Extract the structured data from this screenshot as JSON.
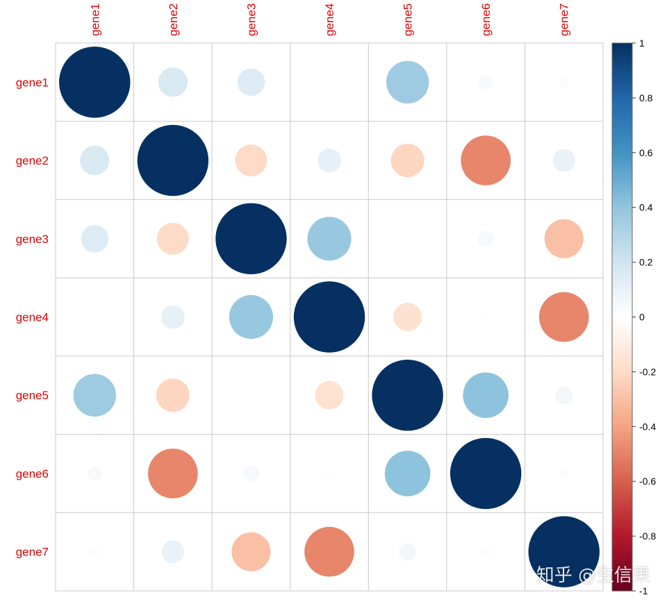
{
  "chart_data": {
    "type": "heatmap",
    "style": "corrplot-circle",
    "variables": [
      "gene1",
      "gene2",
      "gene3",
      "gene4",
      "gene5",
      "gene6",
      "gene7"
    ],
    "matrix": [
      [
        1,
        0.17,
        0.15,
        0.0,
        0.36,
        0.04,
        0.02
      ],
      [
        0.17,
        1,
        -0.2,
        0.11,
        -0.22,
        -0.49,
        0.1
      ],
      [
        0.15,
        -0.2,
        1,
        0.38,
        0.0,
        0.05,
        -0.3
      ],
      [
        0.0,
        0.11,
        0.38,
        1,
        -0.16,
        -0.01,
        -0.49
      ],
      [
        0.36,
        -0.22,
        0.0,
        -0.16,
        1,
        0.41,
        0.06
      ],
      [
        0.04,
        -0.49,
        0.05,
        -0.01,
        0.41,
        1,
        0.02
      ],
      [
        0.02,
        0.1,
        -0.3,
        -0.49,
        0.06,
        0.02,
        1
      ]
    ],
    "colorbar": {
      "range": [
        -1,
        1
      ],
      "ticks": [
        "1",
        "0.8",
        "0.6",
        "0.4",
        "0.2",
        "0",
        "-0.2",
        "-0.4",
        "-0.6",
        "-0.8",
        "-1"
      ]
    },
    "colors": [
      "#67001F",
      "#B2182B",
      "#D6604D",
      "#F4A582",
      "#FDDBC7",
      "#FFFFFF",
      "#D1E5F0",
      "#92C5DE",
      "#4393C3",
      "#2166AC",
      "#053061"
    ],
    "label_color": "#E00000",
    "grid": true
  },
  "watermark": "知乎 @生信果"
}
